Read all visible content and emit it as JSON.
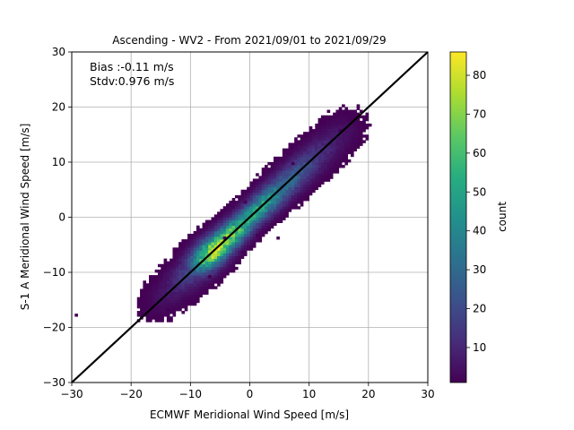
{
  "chart_data": {
    "type": "heatmap",
    "title": "Ascending - WV2 - From 2021/09/01 to 2021/09/29",
    "xlabel": "ECMWF Meridional Wind Speed [m/s]",
    "ylabel": "S-1 A Meridional Wind Speed [m/s]",
    "xlim": [
      -30,
      30
    ],
    "ylim": [
      -30,
      30
    ],
    "xticks": [
      "−30",
      "−20",
      "−10",
      "0",
      "10",
      "20",
      "30"
    ],
    "yticks": [
      "−30",
      "−20",
      "−10",
      "0",
      "10",
      "20",
      "30"
    ],
    "grid": true,
    "annotations": [
      "Bias :-0.11 m/s",
      "Stdv:0.976 m/s"
    ],
    "reference_line": {
      "x": [
        -30,
        30
      ],
      "y": [
        -30,
        30
      ],
      "color": "#000000"
    },
    "colorbar": {
      "label": "count",
      "range": [
        1,
        86
      ],
      "ticks": [
        "10",
        "20",
        "30",
        "40",
        "50",
        "60",
        "70",
        "80"
      ],
      "colormap": "viridis"
    },
    "density_summary": {
      "bin_size": 0.5,
      "center_line": "y = x",
      "peak_counts": [
        {
          "x": -6.5,
          "y": -6.5,
          "count": 80
        },
        {
          "x": -5.5,
          "y": -5.0,
          "count": 75
        },
        {
          "x": -3.5,
          "y": -3.5,
          "count": 70
        },
        {
          "x": -2.0,
          "y": -2.0,
          "count": 60
        },
        {
          "x": 0.5,
          "y": 0.5,
          "count": 50
        },
        {
          "x": 2.5,
          "y": 2.5,
          "count": 50
        },
        {
          "x": 5.0,
          "y": 5.0,
          "count": 35
        },
        {
          "x": 8.0,
          "y": 8.0,
          "count": 25
        },
        {
          "x": 11.0,
          "y": 11.0,
          "count": 15
        },
        {
          "x": 14.0,
          "y": 14.0,
          "count": 8
        },
        {
          "x": 17.0,
          "y": 17.0,
          "count": 3
        },
        {
          "x": -10.0,
          "y": -10.0,
          "count": 20
        },
        {
          "x": -13.0,
          "y": -13.0,
          "count": 8
        },
        {
          "x": -16.0,
          "y": -16.0,
          "count": 3
        }
      ],
      "outliers": [
        {
          "x": -29.5,
          "y": -18.0,
          "count": 1
        },
        {
          "x": -17.5,
          "y": -17.5,
          "count": 1
        },
        {
          "x": -16.5,
          "y": -18.5,
          "count": 1
        },
        {
          "x": -14.0,
          "y": -17.0,
          "count": 1
        },
        {
          "x": -7.0,
          "y": -11.0,
          "count": 1
        },
        {
          "x": -4.5,
          "y": -4.0,
          "count": 1
        },
        {
          "x": -1.5,
          "y": -6.5,
          "count": 1
        },
        {
          "x": 1.0,
          "y": -3.5,
          "count": 1
        },
        {
          "x": 4.5,
          "y": -4.0,
          "count": 1
        },
        {
          "x": -0.5,
          "y": 4.5,
          "count": 1
        },
        {
          "x": -1.0,
          "y": 2.5,
          "count": 1
        },
        {
          "x": 19.5,
          "y": 18.5,
          "count": 1
        },
        {
          "x": 18.0,
          "y": 19.5,
          "count": 1
        },
        {
          "x": 15.0,
          "y": 15.5,
          "count": 1
        },
        {
          "x": 7.0,
          "y": 9.5,
          "count": 1
        }
      ]
    }
  }
}
